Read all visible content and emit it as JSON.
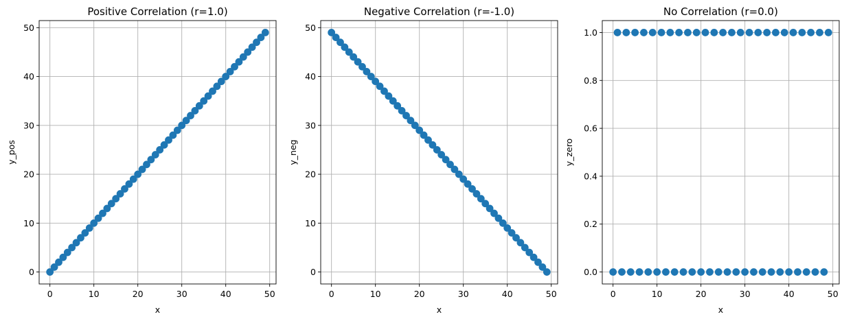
{
  "figure": {
    "point_color": "#1f77b4",
    "background": "#ffffff"
  },
  "chart_data": [
    {
      "type": "scatter",
      "title": "Positive Correlation (r=1.0)",
      "xlabel": "x",
      "ylabel": "y_pos",
      "xlim": [
        -2.45,
        51.45
      ],
      "ylim": [
        -2.45,
        51.45
      ],
      "xticks": [
        0,
        10,
        20,
        30,
        40,
        50
      ],
      "yticks": [
        0,
        10,
        20,
        30,
        40,
        50
      ],
      "ytick_labels": [
        "0",
        "10",
        "20",
        "30",
        "40",
        "50"
      ],
      "grid": true,
      "x": [
        0,
        1,
        2,
        3,
        4,
        5,
        6,
        7,
        8,
        9,
        10,
        11,
        12,
        13,
        14,
        15,
        16,
        17,
        18,
        19,
        20,
        21,
        22,
        23,
        24,
        25,
        26,
        27,
        28,
        29,
        30,
        31,
        32,
        33,
        34,
        35,
        36,
        37,
        38,
        39,
        40,
        41,
        42,
        43,
        44,
        45,
        46,
        47,
        48,
        49
      ],
      "y": [
        0,
        1,
        2,
        3,
        4,
        5,
        6,
        7,
        8,
        9,
        10,
        11,
        12,
        13,
        14,
        15,
        16,
        17,
        18,
        19,
        20,
        21,
        22,
        23,
        24,
        25,
        26,
        27,
        28,
        29,
        30,
        31,
        32,
        33,
        34,
        35,
        36,
        37,
        38,
        39,
        40,
        41,
        42,
        43,
        44,
        45,
        46,
        47,
        48,
        49
      ]
    },
    {
      "type": "scatter",
      "title": "Negative Correlation (r=-1.0)",
      "xlabel": "x",
      "ylabel": "y_neg",
      "xlim": [
        -2.45,
        51.45
      ],
      "ylim": [
        -2.45,
        51.45
      ],
      "xticks": [
        0,
        10,
        20,
        30,
        40,
        50
      ],
      "yticks": [
        0,
        10,
        20,
        30,
        40,
        50
      ],
      "ytick_labels": [
        "0",
        "10",
        "20",
        "30",
        "40",
        "50"
      ],
      "grid": true,
      "x": [
        0,
        1,
        2,
        3,
        4,
        5,
        6,
        7,
        8,
        9,
        10,
        11,
        12,
        13,
        14,
        15,
        16,
        17,
        18,
        19,
        20,
        21,
        22,
        23,
        24,
        25,
        26,
        27,
        28,
        29,
        30,
        31,
        32,
        33,
        34,
        35,
        36,
        37,
        38,
        39,
        40,
        41,
        42,
        43,
        44,
        45,
        46,
        47,
        48,
        49
      ],
      "y": [
        49,
        48,
        47,
        46,
        45,
        44,
        43,
        42,
        41,
        40,
        39,
        38,
        37,
        36,
        35,
        34,
        33,
        32,
        31,
        30,
        29,
        28,
        27,
        26,
        25,
        24,
        23,
        22,
        21,
        20,
        19,
        18,
        17,
        16,
        15,
        14,
        13,
        12,
        11,
        10,
        9,
        8,
        7,
        6,
        5,
        4,
        3,
        2,
        1,
        0
      ]
    },
    {
      "type": "scatter",
      "title": "No Correlation (r=0.0)",
      "xlabel": "x",
      "ylabel": "y_zero",
      "xlim": [
        -2.45,
        51.45
      ],
      "ylim": [
        -0.05,
        1.05
      ],
      "xticks": [
        0,
        10,
        20,
        30,
        40,
        50
      ],
      "yticks": [
        0.0,
        0.2,
        0.4,
        0.6,
        0.8,
        1.0
      ],
      "ytick_labels": [
        "0.0",
        "0.2",
        "0.4",
        "0.6",
        "0.8",
        "1.0"
      ],
      "grid": true,
      "x": [
        0,
        1,
        2,
        3,
        4,
        5,
        6,
        7,
        8,
        9,
        10,
        11,
        12,
        13,
        14,
        15,
        16,
        17,
        18,
        19,
        20,
        21,
        22,
        23,
        24,
        25,
        26,
        27,
        28,
        29,
        30,
        31,
        32,
        33,
        34,
        35,
        36,
        37,
        38,
        39,
        40,
        41,
        42,
        43,
        44,
        45,
        46,
        47,
        48,
        49
      ],
      "y": [
        0,
        1,
        0,
        1,
        0,
        1,
        0,
        1,
        0,
        1,
        0,
        1,
        0,
        1,
        0,
        1,
        0,
        1,
        0,
        1,
        0,
        1,
        0,
        1,
        0,
        1,
        0,
        1,
        0,
        1,
        0,
        1,
        0,
        1,
        0,
        1,
        0,
        1,
        0,
        1,
        0,
        1,
        0,
        1,
        0,
        1,
        0,
        1,
        0,
        1
      ]
    }
  ]
}
